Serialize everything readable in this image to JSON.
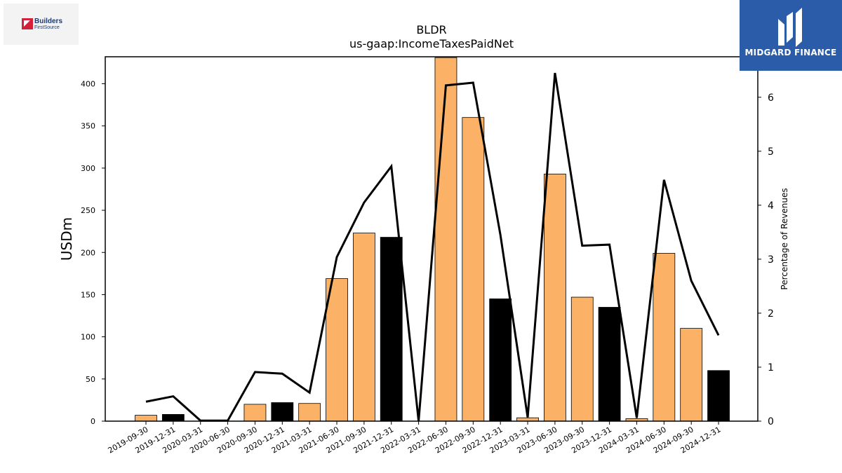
{
  "title": "BLDR",
  "subtitle": "us-gaap:IncomeTaxesPaidNet",
  "logos": {
    "left_line1": "Builders",
    "left_line2": "FirstSource",
    "right_name": "MIDGARD FINANCE"
  },
  "colors": {
    "bar_normal": "#fbb266",
    "bar_q4": "#000000",
    "line": "#000000"
  },
  "chart_data": {
    "type": "bar",
    "title": "BLDR",
    "subtitle": "us-gaap:IncomeTaxesPaidNet",
    "ylabel": "USDm",
    "y2label": "Percentage of Revenues",
    "ylim": [
      0,
      432
    ],
    "y2lim": [
      0,
      6.75
    ],
    "yticks": [
      0,
      50,
      100,
      150,
      200,
      250,
      300,
      350,
      400
    ],
    "y2ticks": [
      0,
      1,
      2,
      3,
      4,
      5,
      6
    ],
    "grid": false,
    "categories": [
      "2019-09-30",
      "2019-12-31",
      "2020-03-31",
      "2020-06-30",
      "2020-09-30",
      "2020-12-31",
      "2021-03-31",
      "2021-06-30",
      "2021-09-30",
      "2021-12-31",
      "2022-03-31",
      "2022-06-30",
      "2022-09-30",
      "2022-12-31",
      "2023-03-31",
      "2023-06-30",
      "2023-09-30",
      "2023-12-31",
      "2024-03-31",
      "2024-06-30",
      "2024-09-30",
      "2024-12-31"
    ],
    "series": [
      {
        "type": "bar",
        "axis": "left",
        "values": [
          7,
          8,
          0,
          0,
          20,
          22,
          21,
          169,
          223,
          218,
          0,
          431,
          360,
          145,
          4,
          293,
          147,
          135,
          3,
          199,
          110,
          60
        ],
        "highlight": [
          false,
          true,
          false,
          false,
          false,
          true,
          false,
          false,
          false,
          true,
          false,
          false,
          false,
          true,
          false,
          false,
          false,
          true,
          false,
          false,
          false,
          true
        ]
      },
      {
        "type": "line",
        "axis": "right",
        "values": [
          0.36,
          0.46,
          0.01,
          0.01,
          0.91,
          0.88,
          0.53,
          3.04,
          4.05,
          4.72,
          0.0,
          6.22,
          6.27,
          3.45,
          0.07,
          6.45,
          3.25,
          3.27,
          0.06,
          4.47,
          2.6,
          1.59
        ]
      }
    ]
  }
}
